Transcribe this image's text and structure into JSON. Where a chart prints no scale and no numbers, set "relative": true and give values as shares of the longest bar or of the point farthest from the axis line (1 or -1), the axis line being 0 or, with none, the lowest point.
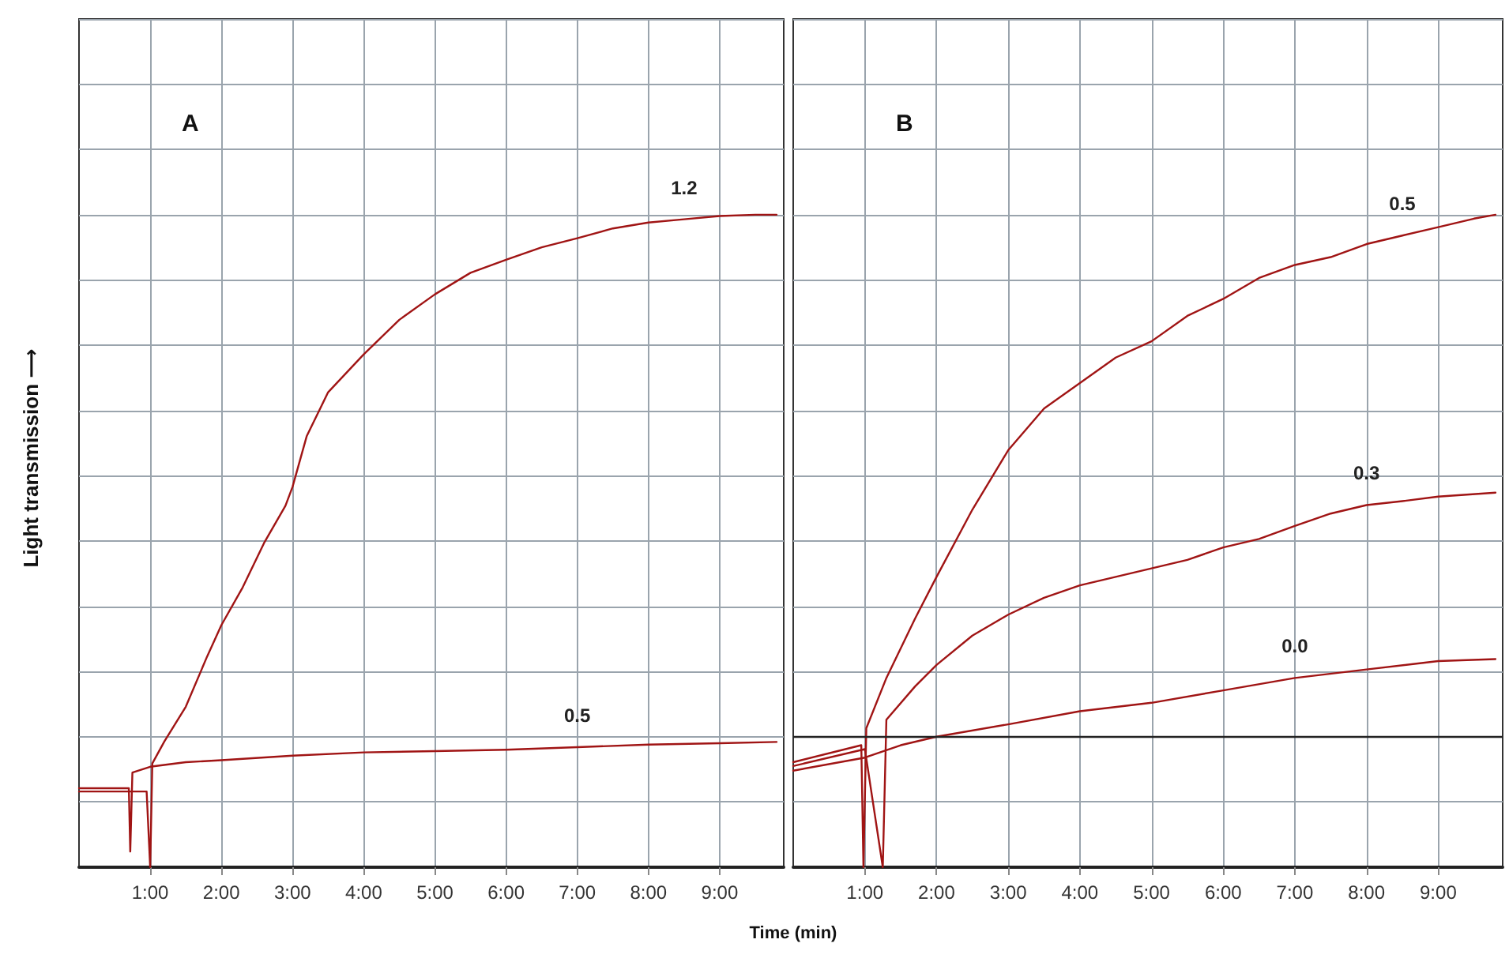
{
  "chart_data": [
    {
      "type": "line",
      "title": "A",
      "ylabel": "Light transmission ⟶",
      "xlabel": "Time (min)",
      "relative": true,
      "xlim": [
        0,
        9.9
      ],
      "xticks": [
        {
          "value": 1,
          "label": "1:00"
        },
        {
          "value": 2,
          "label": "2:00"
        },
        {
          "value": 3,
          "label": "3:00"
        },
        {
          "value": 4,
          "label": "4:00"
        },
        {
          "value": 5,
          "label": "5:00"
        },
        {
          "value": 6,
          "label": "6:00"
        },
        {
          "value": 7,
          "label": "7:00"
        },
        {
          "value": 8,
          "label": "8:00"
        },
        {
          "value": 9,
          "label": "9:00"
        }
      ],
      "grid": true,
      "legend": false,
      "marker": "none",
      "line_style": "solid",
      "series": [
        {
          "name": "1.2",
          "color": "#a01414",
          "x": [
            0,
            0.95,
            1.0,
            1.03,
            1.2,
            1.5,
            1.8,
            2.0,
            2.3,
            2.6,
            2.9,
            3.0,
            3.2,
            3.5,
            4.0,
            4.5,
            5.0,
            5.5,
            6.0,
            6.5,
            7.0,
            7.5,
            8.0,
            8.5,
            9.0,
            9.5,
            9.8
          ],
          "values": [
            0.116,
            0.116,
            0,
            0.159,
            0.193,
            0.246,
            0.323,
            0.371,
            0.429,
            0.497,
            0.554,
            0.583,
            0.661,
            0.728,
            0.786,
            0.839,
            0.878,
            0.911,
            0.931,
            0.95,
            0.964,
            0.979,
            0.988,
            0.993,
            0.998,
            1.0,
            1.0
          ]
        },
        {
          "name": "0.5",
          "color": "#a01414",
          "x": [
            0,
            0.7,
            0.72,
            0.75,
            1.0,
            1.5,
            2.0,
            3.0,
            4.0,
            5.0,
            6.0,
            7.0,
            8.0,
            9.0,
            9.8
          ],
          "values": [
            0.121,
            0.121,
            0.024,
            0.145,
            0.154,
            0.161,
            0.164,
            0.171,
            0.176,
            0.178,
            0.18,
            0.184,
            0.188,
            0.19,
            0.192
          ]
        }
      ]
    },
    {
      "type": "line",
      "title": "B",
      "relative": true,
      "xlim": [
        0,
        9.9
      ],
      "xticks": [
        {
          "value": 1,
          "label": "1:00"
        },
        {
          "value": 2,
          "label": "2:00"
        },
        {
          "value": 3,
          "label": "3:00"
        },
        {
          "value": 4,
          "label": "4:00"
        },
        {
          "value": 5,
          "label": "5:00"
        },
        {
          "value": 6,
          "label": "6:00"
        },
        {
          "value": 7,
          "label": "7:00"
        },
        {
          "value": 8,
          "label": "8:00"
        },
        {
          "value": 9,
          "label": "9:00"
        }
      ],
      "grid": true,
      "legend": false,
      "marker": "none",
      "line_style": "solid",
      "ref_lines": [
        {
          "axis": "y",
          "value": 0.2,
          "color": "#222222"
        }
      ],
      "series": [
        {
          "name": "0.5",
          "color": "#a01414",
          "x": [
            0,
            0.95,
            0.98,
            1.02,
            1.3,
            1.7,
            2.0,
            2.5,
            3.0,
            3.5,
            4.0,
            4.5,
            5.0,
            5.5,
            6.0,
            6.5,
            7.0,
            7.5,
            8.0,
            8.5,
            9.0,
            9.5,
            9.8
          ],
          "values": [
            0.161,
            0.187,
            0,
            0.213,
            0.29,
            0.381,
            0.445,
            0.548,
            0.639,
            0.703,
            0.742,
            0.781,
            0.806,
            0.845,
            0.871,
            0.903,
            0.923,
            0.935,
            0.955,
            0.968,
            0.981,
            0.994,
            1.0
          ]
        },
        {
          "name": "0.3",
          "color": "#a01414",
          "x": [
            0,
            1.0,
            1.25,
            1.3,
            1.7,
            2.0,
            2.5,
            3.0,
            3.5,
            4.0,
            4.5,
            5.0,
            5.5,
            6.0,
            6.5,
            7.0,
            7.5,
            8.0,
            8.5,
            9.0,
            9.8
          ],
          "values": [
            0.155,
            0.181,
            0,
            0.226,
            0.277,
            0.31,
            0.355,
            0.387,
            0.413,
            0.432,
            0.445,
            0.458,
            0.471,
            0.49,
            0.503,
            0.523,
            0.542,
            0.555,
            0.561,
            0.568,
            0.574
          ]
        },
        {
          "name": "0.0",
          "color": "#a01414",
          "x": [
            0,
            1.0,
            1.5,
            2.0,
            3.0,
            4.0,
            5.0,
            6.0,
            7.0,
            8.0,
            9.0,
            9.8
          ],
          "values": [
            0.148,
            0.168,
            0.187,
            0.2,
            0.219,
            0.239,
            0.252,
            0.271,
            0.29,
            0.303,
            0.316,
            0.319
          ]
        }
      ]
    }
  ]
}
